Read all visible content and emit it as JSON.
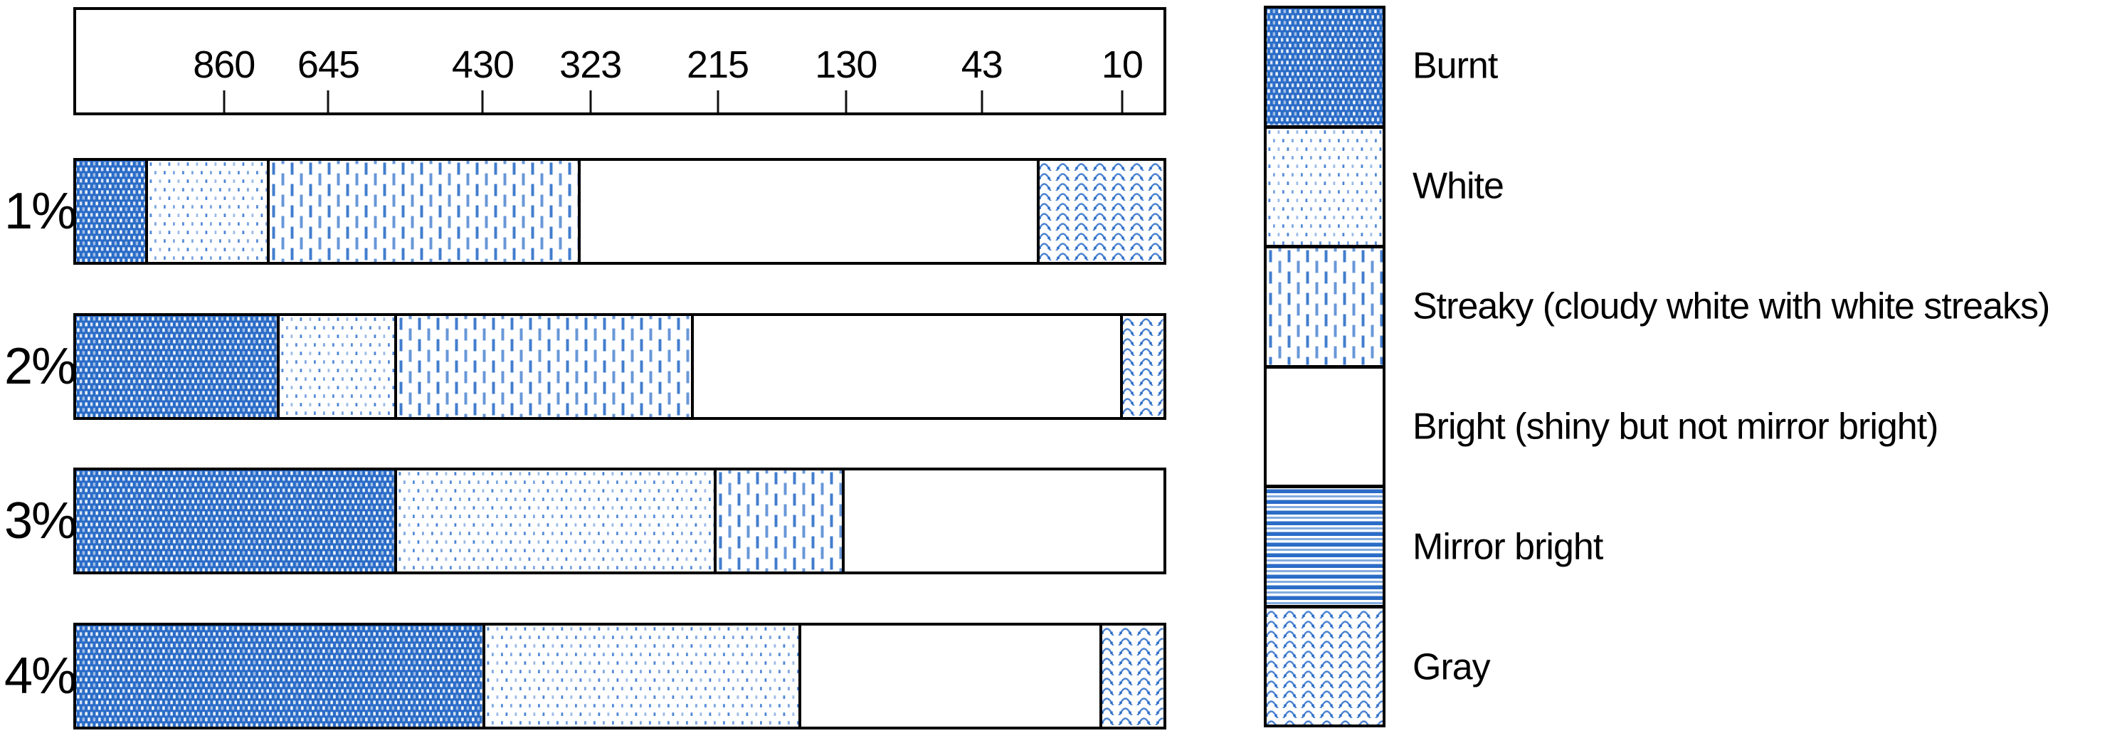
{
  "chart_data": {
    "type": "stacked-bar-horizontal",
    "title": "",
    "x_axis": {
      "note": "tick values decrease left to right",
      "ticks": [
        {
          "label": "860",
          "pos_pct": 13.6
        },
        {
          "label": "645",
          "pos_pct": 23.2
        },
        {
          "label": "430",
          "pos_pct": 37.4
        },
        {
          "label": "323",
          "pos_pct": 47.3
        },
        {
          "label": "215",
          "pos_pct": 59.0
        },
        {
          "label": "130",
          "pos_pct": 70.8
        },
        {
          "label": "43",
          "pos_pct": 83.3
        },
        {
          "label": "10",
          "pos_pct": 96.2
        }
      ]
    },
    "categories": [
      "1%",
      "2%",
      "3%",
      "4%"
    ],
    "series_keys": [
      "burnt",
      "white",
      "streaky",
      "bright",
      "mirror",
      "gray"
    ],
    "bars": [
      {
        "label": "1%",
        "segments_pct": [
          6.6,
          11.2,
          28.6,
          42.2,
          0,
          11.4
        ]
      },
      {
        "label": "2%",
        "segments_pct": [
          18.7,
          10.8,
          27.3,
          39.5,
          0,
          3.7
        ]
      },
      {
        "label": "3%",
        "segments_pct": [
          29.5,
          29.4,
          11.8,
          29.3,
          0,
          0
        ]
      },
      {
        "label": "4%",
        "segments_pct": [
          37.6,
          29.1,
          0,
          27.7,
          0,
          5.6
        ]
      }
    ],
    "legend": [
      {
        "key": "burnt",
        "label": "Burnt",
        "swatch": "dense-blue-with-white-dots"
      },
      {
        "key": "white",
        "label": "White",
        "swatch": "sparse-blue-dots-on-white"
      },
      {
        "key": "streaky",
        "label": "Streaky (cloudy white with white streaks)",
        "swatch": "blue-vertical-dashes"
      },
      {
        "key": "bright",
        "label": "Bright (shiny but not mirror bright)",
        "swatch": "plain-white"
      },
      {
        "key": "mirror",
        "label": "Mirror bright",
        "swatch": "blue-horizontal-stripes"
      },
      {
        "key": "gray",
        "label": "Gray",
        "swatch": "blue-zigzag-waves"
      }
    ],
    "layout": {
      "legend_position": "right",
      "grid": "off"
    },
    "colors": {
      "accent": "#2B6CC7",
      "accent_light": "#82ABDF",
      "ink": "#000000",
      "bg": "#FFFFFF"
    }
  }
}
